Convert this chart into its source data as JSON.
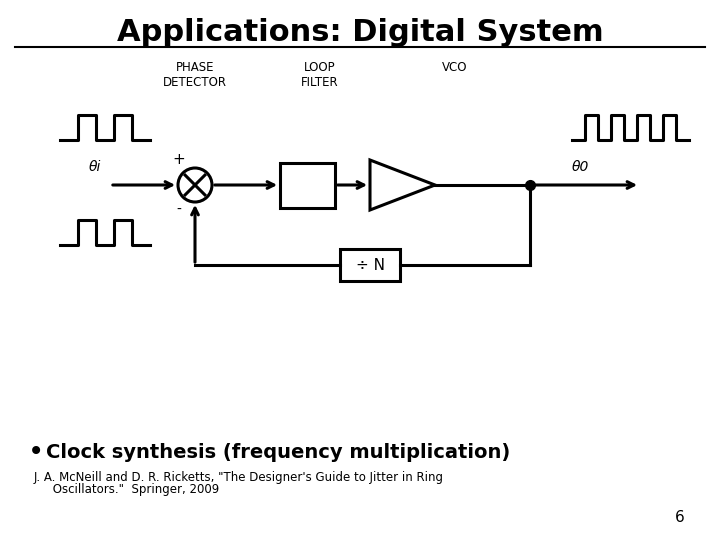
{
  "title": "Applications: Digital System",
  "title_fontsize": 22,
  "title_fontweight": "bold",
  "bg_color": "#ffffff",
  "text_color": "#000000",
  "label_phase_detector": "PHASE\nDETECTOR",
  "label_loop_filter": "LOOP\nFILTER",
  "label_vco": "VCO",
  "label_theta_i": "θi",
  "label_theta_o": "θ0",
  "label_plus": "+",
  "label_minus": "-",
  "label_divN": "÷ N",
  "bullet_text": "Clock synthesis (frequency multiplication)",
  "citation_line1": "J. A. McNeill and D. R. Ricketts, \"The Designer's Guide to Jitter in Ring",
  "citation_line2": "     Oscillators.\"  Springer, 2009",
  "page_number": "6",
  "lw": 2.2
}
